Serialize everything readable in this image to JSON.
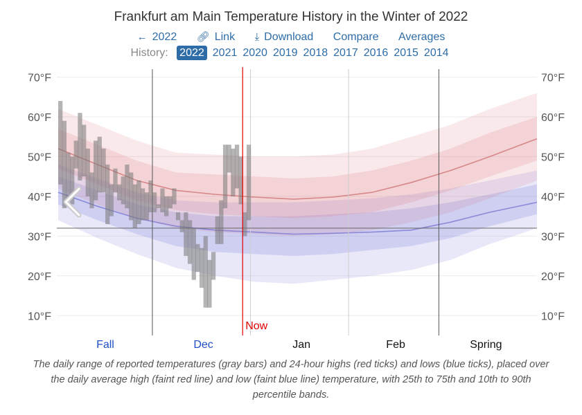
{
  "page": {
    "title": "Frankfurt am Main Temperature History in the Winter of 2022",
    "toolbar": {
      "prev_label": "2022",
      "link_label": "Link",
      "download_label": "Download",
      "compare_label": "Compare",
      "averages_label": "Averages"
    },
    "history": {
      "label": "History:",
      "years": [
        "2022",
        "2021",
        "2020",
        "2019",
        "2018",
        "2017",
        "2016",
        "2015",
        "2014"
      ],
      "selected": "2022"
    },
    "caption": "The daily range of reported temperatures (gray bars) and 24-hour highs (red ticks) and lows (blue ticks), placed over the daily average high (faint red line) and low (faint blue line) temperature, with 25th to 75th and 10th to 90th percentile bands.",
    "prev_arrow_icon": "chevron-left-icon"
  },
  "chart_data": {
    "type": "area",
    "title": "Frankfurt am Main Temperature History in the Winter of 2022",
    "ylabel": "°F",
    "ylim": [
      5,
      72
    ],
    "yticks": [
      10,
      20,
      30,
      40,
      50,
      60,
      70
    ],
    "ytick_labels": [
      "10°F",
      "20°F",
      "30°F",
      "40°F",
      "50°F",
      "60°F",
      "70°F"
    ],
    "freezing_line": 32,
    "x_range_days": [
      0,
      122
    ],
    "now_day": 47,
    "now_label": "Now",
    "season_labels": [
      {
        "label": "Fall",
        "day": 12,
        "past": true
      },
      {
        "label": "Dec",
        "day": 37,
        "past": true
      },
      {
        "label": "Jan",
        "day": 62,
        "past": false
      },
      {
        "label": "Feb",
        "day": 86,
        "past": false
      },
      {
        "label": "Spring",
        "day": 109,
        "past": false
      }
    ],
    "dividers": [
      {
        "day": 24,
        "dark": true
      },
      {
        "day": 49,
        "dark": false
      },
      {
        "day": 74,
        "dark": false
      },
      {
        "day": 97,
        "dark": true
      }
    ],
    "normals_x": [
      0,
      10,
      20,
      30,
      40,
      50,
      60,
      70,
      80,
      90,
      100,
      110,
      122
    ],
    "series": [
      {
        "name": "average high",
        "values": [
          52,
          48,
          44,
          41.5,
          40.5,
          39.8,
          39.3,
          39.8,
          41,
          43.5,
          46.5,
          50,
          54.5
        ]
      },
      {
        "name": "high 10th percentile",
        "values": [
          42,
          38,
          34.5,
          32,
          31,
          30.5,
          30,
          30.5,
          31.5,
          33.5,
          36,
          39.5,
          44
        ]
      },
      {
        "name": "high 25th percentile",
        "values": [
          47,
          43,
          39,
          36.5,
          35.5,
          35,
          34.5,
          35,
          36,
          38.5,
          41.5,
          45,
          49
        ]
      },
      {
        "name": "high 75th percentile",
        "values": [
          57,
          53,
          49,
          46,
          45.5,
          45,
          44.5,
          45,
          46.5,
          49,
          52,
          56,
          60
        ]
      },
      {
        "name": "high 90th percentile",
        "values": [
          62,
          58,
          54,
          51,
          50.5,
          50,
          50,
          50.5,
          52,
          55,
          58,
          62,
          66
        ]
      },
      {
        "name": "average low",
        "values": [
          41,
          37.5,
          34.5,
          32.5,
          31.5,
          31,
          30.5,
          30.7,
          31,
          31.5,
          33.5,
          36,
          38.5
        ]
      },
      {
        "name": "low 10th percentile",
        "values": [
          34,
          29.5,
          25.5,
          22,
          20,
          18.5,
          18,
          19,
          20,
          21.5,
          24,
          28,
          32
        ]
      },
      {
        "name": "low 25th percentile",
        "values": [
          38,
          34,
          30.5,
          27.5,
          26,
          25.5,
          25,
          25.5,
          26.5,
          27.5,
          29.5,
          32.5,
          35.5
        ]
      },
      {
        "name": "low 75th percentile",
        "values": [
          45,
          41.5,
          38,
          36,
          35,
          35,
          35,
          35.5,
          36,
          37,
          38.5,
          40.5,
          43
        ]
      },
      {
        "name": "low 90th percentile",
        "values": [
          48,
          44.5,
          41,
          39,
          38.5,
          38.5,
          38.5,
          39,
          39.5,
          40.5,
          42,
          44,
          46.5
        ]
      }
    ],
    "daily_ranges": [
      [
        43,
        64
      ],
      [
        37,
        59
      ],
      [
        39,
        51
      ],
      [
        38,
        50
      ],
      [
        47,
        54
      ],
      [
        44,
        61
      ],
      [
        45,
        58
      ],
      [
        40,
        52
      ],
      [
        37,
        46
      ],
      [
        39,
        54
      ],
      [
        41,
        55
      ],
      [
        41,
        52
      ],
      [
        33,
        48
      ],
      [
        35,
        43
      ],
      [
        41,
        47
      ],
      [
        39,
        43
      ],
      [
        38,
        45
      ],
      [
        37,
        48
      ],
      [
        34,
        46
      ],
      [
        32,
        43
      ],
      [
        33,
        44
      ],
      [
        34,
        42
      ],
      [
        34,
        41
      ],
      [
        36,
        44
      ],
      [
        36,
        41
      ],
      [
        37,
        38
      ],
      [
        36,
        42
      ],
      [
        35,
        40
      ],
      [
        37,
        40
      ],
      [
        38,
        42
      ],
      [
        34,
        36
      ],
      [
        31,
        34
      ],
      [
        25,
        36
      ],
      [
        23,
        34
      ],
      [
        19,
        32
      ],
      [
        21,
        28
      ],
      [
        17,
        27
      ],
      [
        12,
        30
      ],
      [
        12,
        24
      ],
      [
        19,
        26
      ],
      [
        28,
        35
      ],
      [
        28,
        39
      ],
      [
        37,
        53
      ],
      [
        46,
        53
      ],
      [
        40,
        52
      ],
      [
        42,
        53
      ],
      [
        38,
        50
      ],
      [
        30,
        36
      ],
      [
        34,
        53
      ]
    ]
  }
}
